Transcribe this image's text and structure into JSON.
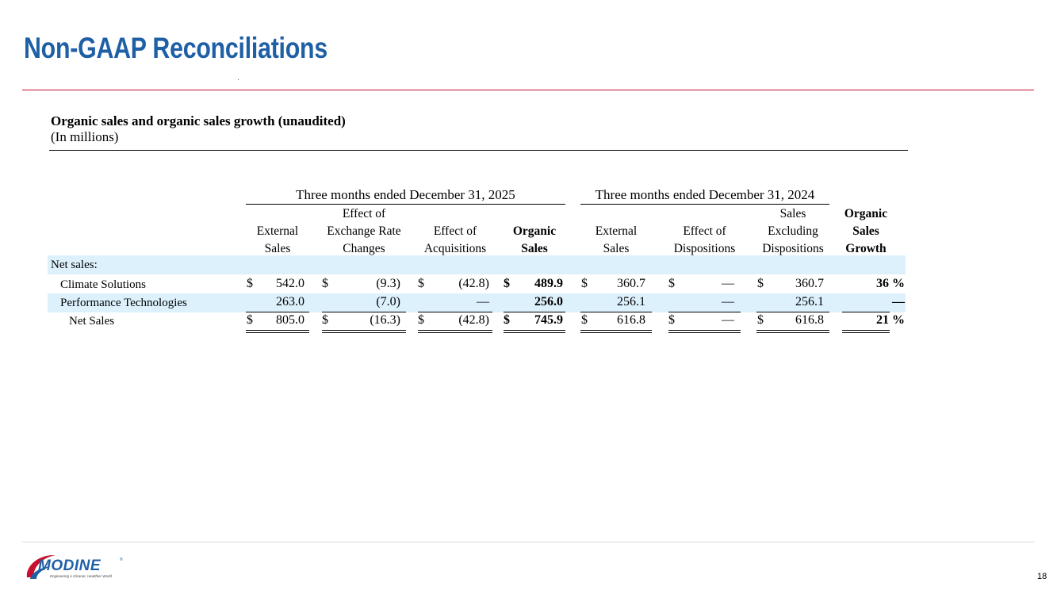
{
  "slide": {
    "title": "Non-GAAP Reconciliations",
    "page_number": "18"
  },
  "table": {
    "title": "Organic sales and organic sales growth (unaudited)",
    "subtitle": "(In millions)",
    "groups": [
      "Three months ended December 31, 2025",
      "Three months ended December 31, 2024"
    ],
    "columns": [
      [
        "External",
        "Sales"
      ],
      [
        "Effect of",
        "Exchange Rate",
        "Changes"
      ],
      [
        "Effect of",
        "Acquisitions"
      ],
      [
        "Organic",
        "Sales"
      ],
      [
        "External",
        "Sales"
      ],
      [
        "Effect of",
        "Dispositions"
      ],
      [
        "Sales",
        "Excluding",
        "Dispositions"
      ],
      [
        "Organic",
        "Sales",
        "Growth"
      ]
    ],
    "section_label": "Net sales:",
    "rows": [
      {
        "label": "Climate Solutions",
        "cells": [
          {
            "cur": "$",
            "val": "542.0"
          },
          {
            "cur": "$",
            "val": "(9.3)"
          },
          {
            "cur": "$",
            "val": "(42.8)"
          },
          {
            "cur": "$",
            "val": "489.9"
          },
          {
            "cur": "$",
            "val": "360.7"
          },
          {
            "cur": "$",
            "val": "—"
          },
          {
            "cur": "$",
            "val": "360.7"
          },
          {
            "cur": "",
            "val": "36 %"
          }
        ]
      },
      {
        "label": "Performance Technologies",
        "cells": [
          {
            "cur": "",
            "val": "263.0"
          },
          {
            "cur": "",
            "val": "(7.0)"
          },
          {
            "cur": "",
            "val": "—"
          },
          {
            "cur": "",
            "val": "256.0"
          },
          {
            "cur": "",
            "val": "256.1"
          },
          {
            "cur": "",
            "val": "—"
          },
          {
            "cur": "",
            "val": "256.1"
          },
          {
            "cur": "",
            "val": "—"
          }
        ]
      },
      {
        "label": "Net Sales",
        "cells": [
          {
            "cur": "$",
            "val": "805.0"
          },
          {
            "cur": "$",
            "val": "(16.3)"
          },
          {
            "cur": "$",
            "val": "(42.8)"
          },
          {
            "cur": "$",
            "val": "745.9"
          },
          {
            "cur": "$",
            "val": "616.8"
          },
          {
            "cur": "$",
            "val": "—"
          },
          {
            "cur": "$",
            "val": "616.8"
          },
          {
            "cur": "",
            "val": "21 %"
          }
        ]
      }
    ]
  },
  "footer": {
    "logo_text": "MODINE",
    "logo_tagline": "Engineering a Cleaner, Healthier World"
  },
  "colors": {
    "title": "#1f5fa6",
    "rule": "#c8102e",
    "row_highlight": "#ddf1fd"
  }
}
